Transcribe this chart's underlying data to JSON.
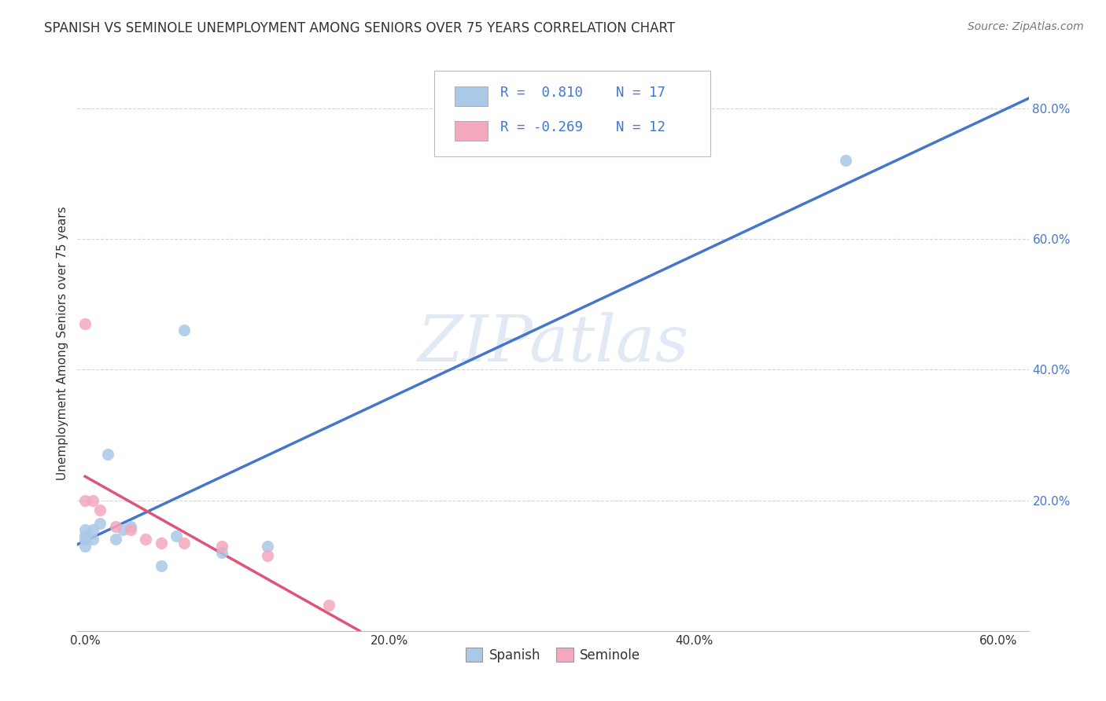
{
  "title": "SPANISH VS SEMINOLE UNEMPLOYMENT AMONG SENIORS OVER 75 YEARS CORRELATION CHART",
  "source": "Source: ZipAtlas.com",
  "ylabel": "Unemployment Among Seniors over 75 years",
  "xlabel_spanish": "Spanish",
  "xlabel_seminole": "Seminole",
  "xlim": [
    -0.005,
    0.62
  ],
  "ylim": [
    0.0,
    0.88
  ],
  "xtick_labels": [
    "0.0%",
    "20.0%",
    "40.0%",
    "60.0%"
  ],
  "xtick_values": [
    0.0,
    0.2,
    0.4,
    0.6
  ],
  "ytick_labels": [
    "20.0%",
    "40.0%",
    "60.0%",
    "80.0%"
  ],
  "ytick_values": [
    0.2,
    0.4,
    0.6,
    0.8
  ],
  "R_spanish": 0.81,
  "N_spanish": 17,
  "R_seminole": -0.269,
  "N_seminole": 12,
  "spanish_color": "#aac8e8",
  "seminole_color": "#f4a8bc",
  "line_spanish_color": "#4477cc",
  "line_seminole_color": "#dd5577",
  "watermark": "ZIPatlas",
  "background_color": "#ffffff",
  "grid_color": "#cccccc",
  "spanish_x": [
    0.0,
    0.0,
    0.0,
    0.0,
    0.005,
    0.005,
    0.01,
    0.015,
    0.02,
    0.025,
    0.03,
    0.05,
    0.06,
    0.065,
    0.09,
    0.12,
    0.5
  ],
  "spanish_y": [
    0.13,
    0.14,
    0.145,
    0.155,
    0.14,
    0.155,
    0.165,
    0.27,
    0.14,
    0.155,
    0.16,
    0.1,
    0.145,
    0.46,
    0.12,
    0.13,
    0.72
  ],
  "seminole_x": [
    0.0,
    0.0,
    0.005,
    0.01,
    0.02,
    0.03,
    0.04,
    0.05,
    0.065,
    0.09,
    0.12,
    0.16
  ],
  "seminole_y": [
    0.47,
    0.2,
    0.2,
    0.185,
    0.16,
    0.155,
    0.14,
    0.135,
    0.135,
    0.13,
    0.115,
    0.04
  ]
}
